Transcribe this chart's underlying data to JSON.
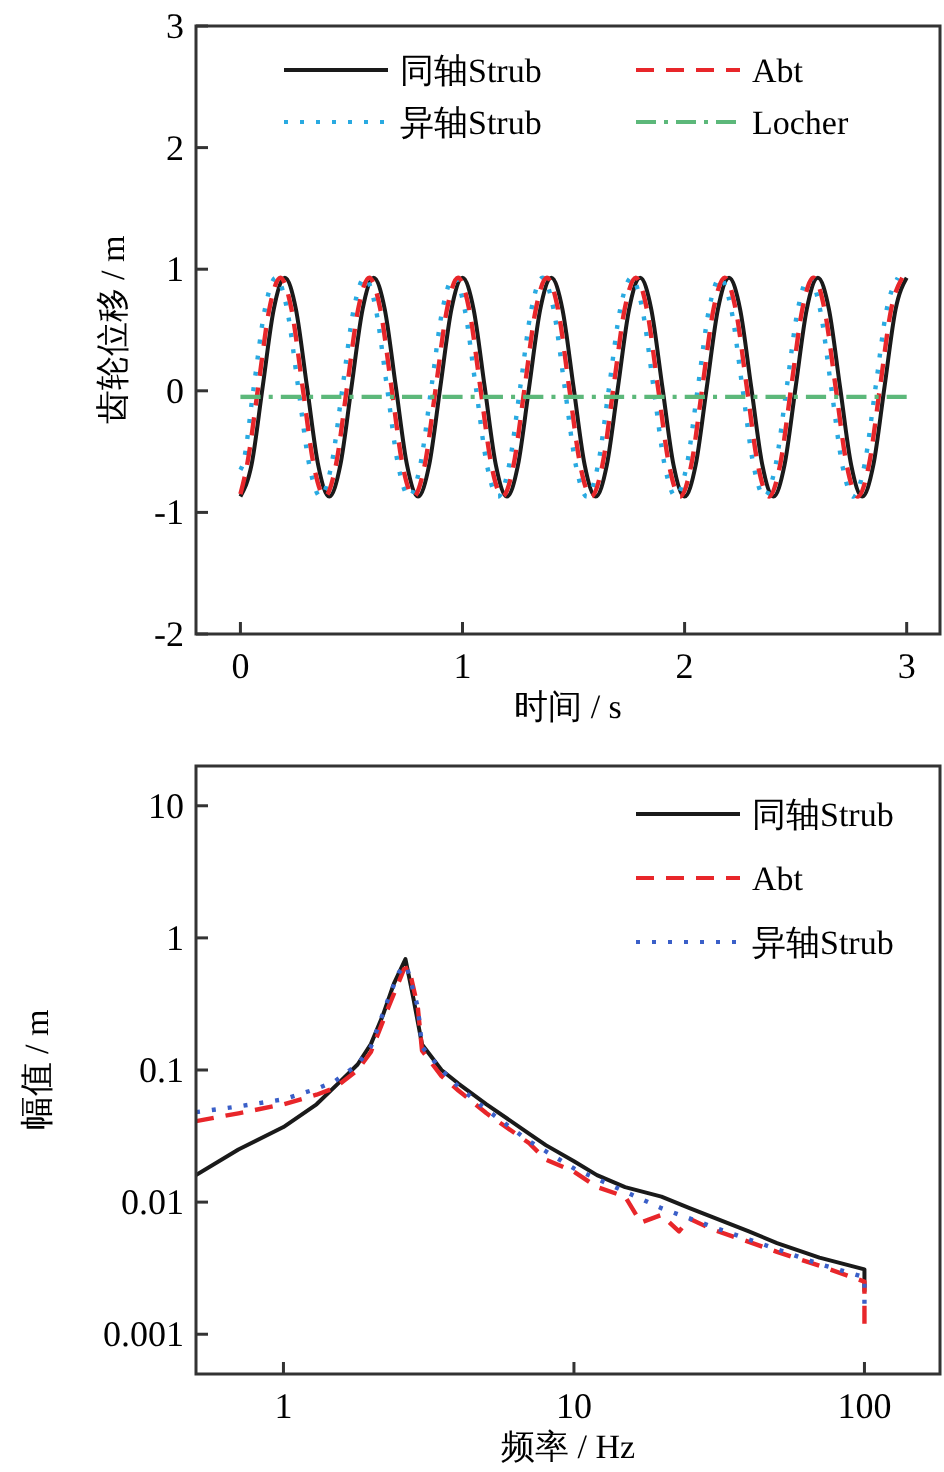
{
  "chart_data": [
    {
      "type": "line",
      "xlabel": "时间 / s",
      "ylabel": "齿轮位移 / m",
      "xlim": [
        -0.2,
        3.15
      ],
      "ylim": [
        -2,
        3
      ],
      "xticks": [
        0,
        1,
        2,
        3
      ],
      "yticks": [
        -2,
        -1,
        0,
        1,
        2,
        3
      ],
      "legend": "top",
      "grid": false,
      "series": [
        {
          "name": "同轴Strub",
          "color": "#1a1a1a",
          "line_style": "solid",
          "x": [
            0,
            0.05,
            0.1,
            0.15,
            0.2,
            0.25,
            0.3,
            0.35,
            0.4,
            0.45,
            0.5,
            0.55,
            0.6,
            0.65,
            0.7,
            0.75,
            0.8,
            0.85,
            0.9,
            0.95,
            1,
            1.05,
            1.1,
            1.15,
            1.2,
            1.25,
            1.3,
            1.35,
            1.4,
            1.45,
            1.5,
            1.55,
            1.6,
            1.65,
            1.7,
            1.75,
            1.8,
            1.85,
            1.9,
            1.95,
            2,
            2.05,
            2.1,
            2.15,
            2.2,
            2.25,
            2.3,
            2.35,
            2.4,
            2.45,
            2.5,
            2.55,
            2.6,
            2.65,
            2.7,
            2.75,
            2.8,
            2.85,
            2.9,
            2.95,
            3
          ],
          "values": [
            -0.87,
            -0.61,
            0.03,
            0.67,
            0.93,
            0.67,
            0.03,
            -0.61,
            -0.87,
            -0.61,
            0.03,
            0.67,
            0.93,
            0.67,
            0.03,
            -0.61,
            -0.87,
            -0.61,
            0.03,
            0.67,
            0.93,
            0.67,
            0.03,
            -0.61,
            -0.87,
            -0.61,
            0.03,
            0.67,
            0.93,
            0.67,
            0.03,
            -0.61,
            -0.87,
            -0.61,
            0.03,
            0.67,
            0.93,
            0.67,
            0.03,
            -0.61,
            -0.87,
            -0.61,
            0.03,
            0.67,
            0.93,
            0.67,
            0.03,
            -0.61,
            -0.87,
            -0.61,
            0.03,
            0.67,
            0.93,
            0.67,
            0.03,
            -0.61,
            -0.87,
            -0.61,
            0.03,
            0.67,
            0.93
          ]
        },
        {
          "name": "异轴Strub",
          "color": "#29aae1",
          "line_style": "dotted",
          "x": [
            0,
            0.01,
            0.06,
            0.11,
            0.16,
            0.21,
            0.26,
            0.31,
            0.36,
            0.41,
            0.46,
            0.51,
            0.56,
            0.61,
            0.66,
            0.71,
            0.76,
            0.81,
            0.86,
            0.91,
            0.96,
            1.01,
            1.06,
            1.11,
            1.16,
            1.21,
            1.26,
            1.31,
            1.36,
            1.41,
            1.46,
            1.51,
            1.56,
            1.61,
            1.66,
            1.71,
            1.76,
            1.81,
            1.86,
            1.91,
            1.96,
            2.01,
            2.06,
            2.11,
            2.16,
            2.21,
            2.26,
            2.31,
            2.36,
            2.41,
            2.46,
            2.51,
            2.56,
            2.61,
            2.66,
            2.71,
            2.76,
            2.81,
            2.86,
            2.91,
            2.96
          ],
          "values": [
            -0.65,
            -0.61,
            0.03,
            0.67,
            0.93,
            0.67,
            0.03,
            -0.61,
            -0.87,
            -0.61,
            0.03,
            0.67,
            0.93,
            0.67,
            0.03,
            -0.61,
            -0.87,
            -0.61,
            0.03,
            0.67,
            0.93,
            0.67,
            0.03,
            -0.61,
            -0.87,
            -0.61,
            0.03,
            0.67,
            0.93,
            0.67,
            0.03,
            -0.61,
            -0.87,
            -0.61,
            0.03,
            0.67,
            0.93,
            0.67,
            0.03,
            -0.61,
            -0.87,
            -0.61,
            0.03,
            0.67,
            0.93,
            0.67,
            0.03,
            -0.61,
            -0.87,
            -0.61,
            0.03,
            0.67,
            0.93,
            0.67,
            0.03,
            -0.61,
            -0.87,
            -0.61,
            0.03,
            0.67,
            0.93
          ]
        },
        {
          "name": "Abt",
          "color": "#e8262a",
          "line_style": "dashed",
          "x": [
            0,
            0.03,
            0.08,
            0.13,
            0.18,
            0.23,
            0.28,
            0.33,
            0.38,
            0.43,
            0.48,
            0.53,
            0.58,
            0.63,
            0.68,
            0.73,
            0.78,
            0.83,
            0.88,
            0.93,
            0.98,
            1.03,
            1.08,
            1.13,
            1.18,
            1.23,
            1.28,
            1.33,
            1.38,
            1.43,
            1.48,
            1.53,
            1.58,
            1.63,
            1.68,
            1.73,
            1.78,
            1.83,
            1.88,
            1.93,
            1.98,
            2.03,
            2.08,
            2.13,
            2.18,
            2.23,
            2.28,
            2.33,
            2.38,
            2.43,
            2.48,
            2.53,
            2.58,
            2.63,
            2.68,
            2.73,
            2.78,
            2.83,
            2.88,
            2.93,
            2.98
          ],
          "values": [
            -0.85,
            -0.61,
            0.03,
            0.67,
            0.93,
            0.67,
            0.03,
            -0.61,
            -0.87,
            -0.61,
            0.03,
            0.67,
            0.93,
            0.67,
            0.03,
            -0.61,
            -0.87,
            -0.61,
            0.03,
            0.67,
            0.93,
            0.67,
            0.03,
            -0.61,
            -0.87,
            -0.61,
            0.03,
            0.67,
            0.93,
            0.67,
            0.03,
            -0.61,
            -0.87,
            -0.61,
            0.03,
            0.67,
            0.93,
            0.67,
            0.03,
            -0.61,
            -0.87,
            -0.61,
            0.03,
            0.67,
            0.93,
            0.67,
            0.03,
            -0.61,
            -0.87,
            -0.61,
            0.03,
            0.67,
            0.93,
            0.67,
            0.03,
            -0.61,
            -0.87,
            -0.61,
            0.03,
            0.67,
            0.93
          ]
        },
        {
          "name": "Locher",
          "color": "#5cb87a",
          "line_style": "dashdot",
          "x": [
            0,
            3
          ],
          "values": [
            -0.05,
            -0.05
          ]
        }
      ]
    },
    {
      "type": "line",
      "xlabel": "频率 / Hz",
      "ylabel": "幅值 / m",
      "log": "xy",
      "xlim": [
        0.5,
        182
      ],
      "ylim": [
        0.0005,
        20
      ],
      "xticks": [
        1,
        10,
        100
      ],
      "yticks": [
        0.001,
        0.01,
        0.1,
        1,
        10
      ],
      "legend": "top right",
      "grid": false,
      "series": [
        {
          "name": "同轴Strub",
          "color": "#1a1a1a",
          "line_style": "solid",
          "x": [
            0.5,
            0.7,
            1,
            1.3,
            1.56,
            1.8,
            2,
            2.2,
            2.4,
            2.63,
            2.8,
            3,
            3.5,
            4,
            5,
            7,
            8,
            10,
            12,
            15,
            20,
            25,
            30,
            40,
            50,
            70,
            100,
            100
          ],
          "values": [
            0.016,
            0.025,
            0.037,
            0.055,
            0.081,
            0.11,
            0.157,
            0.26,
            0.45,
            0.69,
            0.35,
            0.156,
            0.1,
            0.079,
            0.055,
            0.033,
            0.027,
            0.0204,
            0.016,
            0.013,
            0.011,
            0.009,
            0.0077,
            0.006,
            0.0049,
            0.0038,
            0.0031,
            0.0021
          ]
        },
        {
          "name": "Abt",
          "color": "#e8262a",
          "line_style": "dashed",
          "x": [
            0.5,
            0.7,
            1,
            1.3,
            1.5,
            1.8,
            2,
            2.3,
            2.6,
            2.7,
            2.9,
            3,
            3.5,
            4,
            5,
            7,
            8,
            10,
            12,
            15,
            17,
            20,
            23,
            25,
            30,
            40,
            50,
            70,
            100,
            100
          ],
          "values": [
            0.041,
            0.047,
            0.055,
            0.065,
            0.073,
            0.1,
            0.137,
            0.3,
            0.58,
            0.6,
            0.3,
            0.14,
            0.09,
            0.07,
            0.047,
            0.028,
            0.021,
            0.017,
            0.013,
            0.011,
            0.007,
            0.008,
            0.006,
            0.0075,
            0.0062,
            0.005,
            0.0042,
            0.0033,
            0.0025,
            0.0012
          ]
        },
        {
          "name": "异轴Strub",
          "color": "#3a5fc8",
          "line_style": "dotted",
          "x": [
            0.5,
            0.7,
            1,
            1.3,
            1.5,
            1.8,
            2,
            2.3,
            2.5,
            2.65,
            2.9,
            3,
            3.5,
            4,
            5,
            7,
            10,
            15,
            20,
            30,
            50,
            70,
            100,
            100
          ],
          "values": [
            0.048,
            0.053,
            0.06,
            0.072,
            0.082,
            0.11,
            0.15,
            0.35,
            0.55,
            0.62,
            0.3,
            0.15,
            0.1,
            0.075,
            0.05,
            0.029,
            0.018,
            0.012,
            0.009,
            0.0065,
            0.0044,
            0.0034,
            0.0027,
            0.0017
          ]
        }
      ]
    }
  ]
}
